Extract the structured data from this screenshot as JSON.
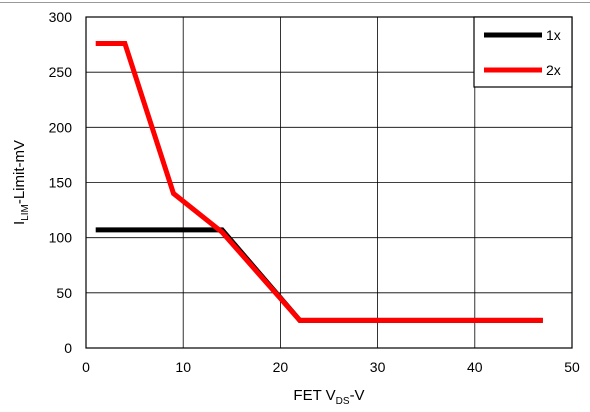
{
  "chart_data": {
    "type": "line",
    "title": "",
    "xlabel": {
      "main": "FET V",
      "sub": "DS",
      "suffix": "-V"
    },
    "ylabel": {
      "main": "I",
      "sub": "LIM",
      "suffix": "-Limit-mV"
    },
    "xlim": [
      0,
      50
    ],
    "ylim": [
      0,
      300
    ],
    "xticks": [
      0,
      10,
      20,
      30,
      40,
      50
    ],
    "yticks": [
      0,
      50,
      100,
      150,
      200,
      250,
      300
    ],
    "grid": true,
    "legend_position": "top-right",
    "series": [
      {
        "name": "1x",
        "color": "#000000",
        "points": [
          [
            1,
            107
          ],
          [
            14,
            107
          ],
          [
            22,
            25
          ],
          [
            47,
            25
          ]
        ]
      },
      {
        "name": "2x",
        "color": "#ff0000",
        "points": [
          [
            1,
            276
          ],
          [
            4,
            276
          ],
          [
            9,
            140
          ],
          [
            14,
            105
          ],
          [
            22,
            25
          ],
          [
            47,
            25
          ]
        ]
      }
    ]
  }
}
